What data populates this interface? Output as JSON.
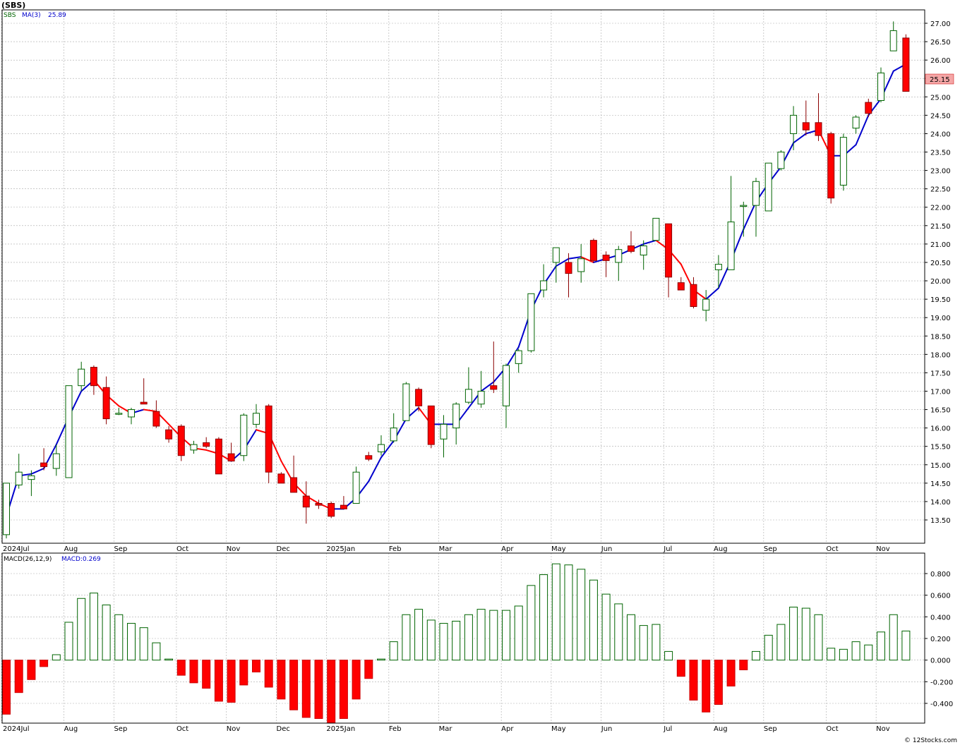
{
  "chart_title": "(SBS)",
  "legend": {
    "symbol": "SBS",
    "ma_label": "MA(3)",
    "ma_value": "25.89",
    "macd_label": "MACD(26,12,9)",
    "macd_value": "MACD:0.269"
  },
  "last_price_label": "25.15",
  "credit": "© 12Stocks.com",
  "colors": {
    "up": "#006400",
    "down": "#ff0000",
    "ma_up": "#0000cc",
    "ma_down": "#ff0000",
    "grid": "#aaaaaa",
    "last_price_bg": "#f4a6a6"
  },
  "chart_data": [
    {
      "type": "candlestick",
      "series_name": "SBS",
      "ylim": [
        13.0,
        27.3
      ],
      "y_ticks": [
        "13.50",
        "14.00",
        "14.50",
        "15.00",
        "15.50",
        "16.00",
        "16.50",
        "17.00",
        "17.50",
        "18.00",
        "18.50",
        "19.00",
        "19.50",
        "20.00",
        "20.50",
        "21.00",
        "21.50",
        "22.00",
        "22.50",
        "23.00",
        "23.50",
        "24.00",
        "24.50",
        "25.00",
        "25.50",
        "26.00",
        "26.50",
        "27.00"
      ],
      "x_ticks": [
        {
          "label": "2024Jul",
          "index": 0
        },
        {
          "label": "Aug",
          "index": 5
        },
        {
          "label": "Sep",
          "index": 9
        },
        {
          "label": "Oct",
          "index": 14
        },
        {
          "label": "Nov",
          "index": 18
        },
        {
          "label": "Dec",
          "index": 22
        },
        {
          "label": "2025Jan",
          "index": 26
        },
        {
          "label": "Feb",
          "index": 31
        },
        {
          "label": "Mar",
          "index": 35
        },
        {
          "label": "Apr",
          "index": 40
        },
        {
          "label": "May",
          "index": 44
        },
        {
          "label": "Jun",
          "index": 48
        },
        {
          "label": "Jul",
          "index": 53
        },
        {
          "label": "Aug",
          "index": 57
        },
        {
          "label": "Sep",
          "index": 61
        },
        {
          "label": "Oct",
          "index": 66
        },
        {
          "label": "Nov",
          "index": 70
        }
      ],
      "candles": [
        {
          "o": 13.1,
          "h": 14.5,
          "l": 13.0,
          "c": 14.5
        },
        {
          "o": 14.45,
          "h": 15.3,
          "l": 14.35,
          "c": 14.8
        },
        {
          "o": 14.6,
          "h": 14.85,
          "l": 14.15,
          "c": 14.7
        },
        {
          "o": 15.05,
          "h": 15.45,
          "l": 14.85,
          "c": 14.95
        },
        {
          "o": 14.9,
          "h": 15.55,
          "l": 14.7,
          "c": 15.3
        },
        {
          "o": 14.65,
          "h": 17.15,
          "l": 14.65,
          "c": 17.15
        },
        {
          "o": 17.15,
          "h": 17.8,
          "l": 17.0,
          "c": 17.6
        },
        {
          "o": 17.65,
          "h": 17.7,
          "l": 16.9,
          "c": 17.15
        },
        {
          "o": 17.1,
          "h": 17.4,
          "l": 16.1,
          "c": 16.25
        },
        {
          "o": 16.4,
          "h": 16.55,
          "l": 16.35,
          "c": 16.4
        },
        {
          "o": 16.3,
          "h": 16.55,
          "l": 16.1,
          "c": 16.5
        },
        {
          "o": 16.7,
          "h": 17.35,
          "l": 16.65,
          "c": 16.65
        },
        {
          "o": 16.45,
          "h": 16.75,
          "l": 16.0,
          "c": 16.05
        },
        {
          "o": 15.95,
          "h": 16.05,
          "l": 15.6,
          "c": 15.7
        },
        {
          "o": 16.05,
          "h": 16.1,
          "l": 15.1,
          "c": 15.25
        },
        {
          "o": 15.4,
          "h": 15.65,
          "l": 15.3,
          "c": 15.55
        },
        {
          "o": 15.6,
          "h": 15.75,
          "l": 15.45,
          "c": 15.5
        },
        {
          "o": 15.7,
          "h": 15.75,
          "l": 14.8,
          "c": 14.75
        },
        {
          "o": 15.3,
          "h": 15.6,
          "l": 15.1,
          "c": 15.1
        },
        {
          "o": 15.25,
          "h": 16.4,
          "l": 15.1,
          "c": 16.35
        },
        {
          "o": 16.1,
          "h": 16.65,
          "l": 16.0,
          "c": 16.4
        },
        {
          "o": 16.6,
          "h": 16.65,
          "l": 14.5,
          "c": 14.8
        },
        {
          "o": 14.75,
          "h": 14.8,
          "l": 14.5,
          "c": 14.5
        },
        {
          "o": 14.65,
          "h": 15.25,
          "l": 14.25,
          "c": 14.25
        },
        {
          "o": 14.15,
          "h": 14.55,
          "l": 13.4,
          "c": 13.85
        },
        {
          "o": 13.95,
          "h": 14.05,
          "l": 13.8,
          "c": 13.9
        },
        {
          "o": 13.95,
          "h": 14.0,
          "l": 13.55,
          "c": 13.6
        },
        {
          "o": 13.9,
          "h": 14.15,
          "l": 13.8,
          "c": 13.8
        },
        {
          "o": 13.95,
          "h": 14.95,
          "l": 13.95,
          "c": 14.8
        },
        {
          "o": 15.25,
          "h": 15.35,
          "l": 15.1,
          "c": 15.15
        },
        {
          "o": 15.35,
          "h": 15.8,
          "l": 15.25,
          "c": 15.55
        },
        {
          "o": 15.65,
          "h": 16.4,
          "l": 15.6,
          "c": 16.0
        },
        {
          "o": 16.2,
          "h": 17.25,
          "l": 16.2,
          "c": 17.2
        },
        {
          "o": 17.05,
          "h": 17.1,
          "l": 16.45,
          "c": 16.6
        },
        {
          "o": 16.6,
          "h": 16.6,
          "l": 15.45,
          "c": 15.55
        },
        {
          "o": 15.7,
          "h": 16.35,
          "l": 15.2,
          "c": 16.1
        },
        {
          "o": 16.0,
          "h": 16.7,
          "l": 15.55,
          "c": 16.65
        },
        {
          "o": 16.7,
          "h": 17.65,
          "l": 16.65,
          "c": 17.05
        },
        {
          "o": 16.65,
          "h": 17.55,
          "l": 16.55,
          "c": 17.0
        },
        {
          "o": 17.15,
          "h": 18.35,
          "l": 16.95,
          "c": 17.05
        },
        {
          "o": 16.6,
          "h": 17.75,
          "l": 16.0,
          "c": 17.7
        },
        {
          "o": 17.75,
          "h": 18.15,
          "l": 17.5,
          "c": 18.1
        },
        {
          "o": 18.1,
          "h": 19.65,
          "l": 18.05,
          "c": 19.65
        },
        {
          "o": 19.75,
          "h": 20.45,
          "l": 19.55,
          "c": 20.0
        },
        {
          "o": 20.5,
          "h": 20.9,
          "l": 19.95,
          "c": 20.9
        },
        {
          "o": 20.5,
          "h": 20.75,
          "l": 19.55,
          "c": 20.2
        },
        {
          "o": 20.25,
          "h": 21.0,
          "l": 19.95,
          "c": 20.6
        },
        {
          "o": 21.1,
          "h": 21.15,
          "l": 20.5,
          "c": 20.55
        },
        {
          "o": 20.7,
          "h": 20.8,
          "l": 20.1,
          "c": 20.55
        },
        {
          "o": 20.5,
          "h": 20.95,
          "l": 20.0,
          "c": 20.85
        },
        {
          "o": 20.95,
          "h": 21.35,
          "l": 20.75,
          "c": 20.8
        },
        {
          "o": 20.7,
          "h": 21.1,
          "l": 20.3,
          "c": 20.95
        },
        {
          "o": 21.1,
          "h": 21.7,
          "l": 21.1,
          "c": 21.7
        },
        {
          "o": 21.55,
          "h": 21.55,
          "l": 19.55,
          "c": 20.1
        },
        {
          "o": 19.95,
          "h": 20.1,
          "l": 19.75,
          "c": 19.75
        },
        {
          "o": 19.9,
          "h": 20.1,
          "l": 19.25,
          "c": 19.3
        },
        {
          "o": 19.2,
          "h": 19.75,
          "l": 18.9,
          "c": 19.5
        },
        {
          "o": 20.3,
          "h": 20.7,
          "l": 19.8,
          "c": 20.45
        },
        {
          "o": 20.3,
          "h": 22.85,
          "l": 20.3,
          "c": 21.6
        },
        {
          "o": 22.05,
          "h": 22.15,
          "l": 21.2,
          "c": 22.05
        },
        {
          "o": 22.05,
          "h": 22.8,
          "l": 21.2,
          "c": 22.7
        },
        {
          "o": 21.9,
          "h": 23.2,
          "l": 21.9,
          "c": 23.2
        },
        {
          "o": 23.05,
          "h": 23.55,
          "l": 23.0,
          "c": 23.5
        },
        {
          "o": 24.0,
          "h": 24.75,
          "l": 23.55,
          "c": 24.5
        },
        {
          "o": 24.3,
          "h": 24.9,
          "l": 23.95,
          "c": 24.1
        },
        {
          "o": 24.3,
          "h": 25.1,
          "l": 23.8,
          "c": 23.95
        },
        {
          "o": 24.0,
          "h": 24.05,
          "l": 22.1,
          "c": 22.25
        },
        {
          "o": 22.6,
          "h": 24.0,
          "l": 22.45,
          "c": 23.9
        },
        {
          "o": 24.15,
          "h": 24.5,
          "l": 24.0,
          "c": 24.45
        },
        {
          "o": 24.85,
          "h": 24.95,
          "l": 24.45,
          "c": 24.55
        },
        {
          "o": 24.9,
          "h": 25.8,
          "l": 24.85,
          "c": 25.65
        },
        {
          "o": 26.25,
          "h": 27.05,
          "l": 26.25,
          "c": 26.8
        },
        {
          "o": 26.6,
          "h": 26.7,
          "l": 25.2,
          "c": 25.15
        }
      ],
      "ma3": [
        13.6,
        14.7,
        14.75,
        14.9,
        15.55,
        16.3,
        17.0,
        17.3,
        16.9,
        16.6,
        16.4,
        16.5,
        16.45,
        16.1,
        15.75,
        15.45,
        15.4,
        15.3,
        15.1,
        15.4,
        15.95,
        15.85,
        15.1,
        14.5,
        14.15,
        13.95,
        13.8,
        13.8,
        14.1,
        14.55,
        15.2,
        15.65,
        16.25,
        16.55,
        16.1,
        16.1,
        16.1,
        16.55,
        17.0,
        17.25,
        17.65,
        18.2,
        19.2,
        19.9,
        20.4,
        20.6,
        20.65,
        20.5,
        20.6,
        20.7,
        20.85,
        21.0,
        21.1,
        20.85,
        20.45,
        19.75,
        19.5,
        19.8,
        20.55,
        21.4,
        22.15,
        22.65,
        23.1,
        23.75,
        24.0,
        24.1,
        23.4,
        23.4,
        23.7,
        24.5,
        24.95,
        25.7,
        25.89
      ]
    },
    {
      "type": "bar",
      "series_name": "MACD(26,12,9)",
      "ylim": [
        -0.58,
        0.93
      ],
      "y_ticks": [
        "-0.400",
        "-0.200",
        "0.000",
        "0.200",
        "0.400",
        "0.600",
        "0.800"
      ],
      "values": [
        -0.5,
        -0.3,
        -0.18,
        -0.06,
        0.05,
        0.35,
        0.57,
        0.62,
        0.51,
        0.42,
        0.34,
        0.3,
        0.16,
        0.01,
        -0.14,
        -0.21,
        -0.26,
        -0.38,
        -0.39,
        -0.23,
        -0.11,
        -0.25,
        -0.36,
        -0.46,
        -0.53,
        -0.54,
        -0.58,
        -0.54,
        -0.36,
        -0.17,
        0.01,
        0.17,
        0.42,
        0.47,
        0.37,
        0.34,
        0.36,
        0.42,
        0.47,
        0.46,
        0.46,
        0.5,
        0.69,
        0.79,
        0.89,
        0.88,
        0.84,
        0.74,
        0.61,
        0.52,
        0.42,
        0.32,
        0.33,
        0.08,
        -0.15,
        -0.37,
        -0.48,
        -0.41,
        -0.24,
        -0.09,
        0.08,
        0.23,
        0.33,
        0.49,
        0.48,
        0.42,
        0.11,
        0.1,
        0.17,
        0.14,
        0.26,
        0.42,
        0.269
      ]
    }
  ]
}
